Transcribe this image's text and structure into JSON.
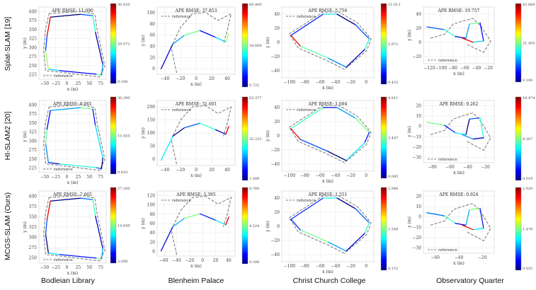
{
  "row_labels": [
    "Splat-SLAM [19]",
    "HI-SLAM2 [20]",
    "MCGS-SLAM (Ours)"
  ],
  "column_labels": [
    "Bodleian Library",
    "Blenheim Palace",
    "Christ Church College",
    "Observatory Quarter"
  ],
  "legend_label": "reference",
  "colors": {
    "reference": "#808080",
    "colormap": [
      "#00007f",
      "#0000ff",
      "#00ffff",
      "#ffff00",
      "#ff0000",
      "#7f0000"
    ]
  },
  "chart_data": [
    {
      "type": "line",
      "title": "APE RMSE: 11.090",
      "row": "Splat-SLAM [19]",
      "column": "Bodleian Library",
      "xlabel": "x (m)",
      "ylabel": "y (m)",
      "xticks": [
        "−50",
        "−25",
        "0",
        "25",
        "50",
        "75"
      ],
      "yticks": [
        "400",
        "375",
        "350",
        "325",
        "300",
        "275",
        "250",
        "225"
      ],
      "colorbar": [
        "30.020",
        "20.072",
        "0.100"
      ]
    },
    {
      "type": "line",
      "title": "APE RMSE: 37.853",
      "row": "Splat-SLAM [19]",
      "column": "Blenheim Palace",
      "xlabel": "x (m)",
      "ylabel": "y (m)",
      "xticks": [
        "−40",
        "−20",
        "0",
        "20",
        "40"
      ],
      "yticks": [
        "100",
        "80",
        "60",
        "40",
        "20",
        "0"
      ],
      "colorbar": [
        "69.490",
        "34.609",
        "0.722"
      ]
    },
    {
      "type": "line",
      "title": "APE RMSE: 5.756",
      "row": "Splat-SLAM [19]",
      "column": "Christ Church College",
      "xlabel": "x (m)",
      "ylabel": "y (m)",
      "xticks": [
        "−100",
        "−80",
        "−60",
        "−40",
        "−20",
        "0"
      ],
      "yticks": [
        "40",
        "20",
        "0",
        "−20",
        "−40"
      ],
      "colorbar": [
        "11.013",
        "5.972",
        "0.432"
      ]
    },
    {
      "type": "line",
      "title": "APE RMSE: 19.757",
      "row": "Splat-SLAM [19]",
      "column": "Observatory Quarter",
      "xlabel": "x (m)",
      "ylabel": "y (m)",
      "xticks": [
        "−120",
        "−100",
        "−80",
        "−60",
        "−40",
        "−20"
      ],
      "yticks": [
        "40",
        "20",
        "0",
        "−20"
      ],
      "colorbar": [
        "42.889",
        "21.495",
        "0.100"
      ]
    },
    {
      "type": "line",
      "title": "APE RMSE: 9.061",
      "row": "HI-SLAM2 [20]",
      "column": "Bodleian Library",
      "xlabel": "x (m)",
      "ylabel": "y (m)",
      "xticks": [
        "−50",
        "−25",
        "0",
        "25",
        "50",
        "75"
      ],
      "yticks": [
        "400",
        "375",
        "350",
        "325",
        "300",
        "275",
        "250",
        "225"
      ],
      "colorbar": [
        "30.390",
        "15.454",
        "0.810"
      ]
    },
    {
      "type": "line",
      "title": "APE RMSE: 31.601",
      "row": "HI-SLAM2 [20]",
      "column": "Blenheim Palace",
      "xlabel": "x (m)",
      "ylabel": "y (m)",
      "xticks": [
        "−40",
        "−20",
        "0",
        "20",
        "40"
      ],
      "yticks": [
        "200",
        "150",
        "100",
        "50",
        "0"
      ],
      "colorbar": [
        "63.377",
        "32.233",
        "1.089"
      ]
    },
    {
      "type": "line",
      "title": "APE RMSE: 1.694",
      "row": "HI-SLAM2 [20]",
      "column": "Christ Church College",
      "xlabel": "x (m)",
      "ylabel": "y (m)",
      "xticks": [
        "−100",
        "−80",
        "−60",
        "−40",
        "−20",
        "0"
      ],
      "yticks": [
        "40",
        "20",
        "0",
        "−20",
        "−40"
      ],
      "colorbar": [
        "4.811",
        "2.447",
        "0.085"
      ]
    },
    {
      "type": "line",
      "title": "APE RMSE: 9.262",
      "row": "HI-SLAM2 [20]",
      "column": "Observatory Quarter",
      "xlabel": "x (m)",
      "ylabel": "y (m)",
      "xticks": [
        "−80",
        "−60",
        "−40",
        "−20"
      ],
      "yticks": [
        "20",
        "10",
        "0",
        "−10",
        "−20",
        "−30"
      ],
      "colorbar": [
        "18.474",
        "9.267",
        "0.019"
      ]
    },
    {
      "type": "line",
      "title": "APE RMSE: 7.665",
      "row": "MCGS-SLAM (Ours)",
      "column": "Bodleian Library",
      "xlabel": "x (m)",
      "ylabel": "y (m)",
      "xticks": [
        "−50",
        "−25",
        "0",
        "25",
        "50",
        "75"
      ],
      "yticks": [
        "400",
        "375",
        "350",
        "325",
        "300",
        "275",
        "250"
      ],
      "colorbar": [
        "27.200",
        "14.649",
        "2.098"
      ]
    },
    {
      "type": "line",
      "title": "APE RMSE: 3.395",
      "row": "MCGS-SLAM (Ours)",
      "column": "Blenheim Palace",
      "xlabel": "x (m)",
      "ylabel": "y (m)",
      "xticks": [
        "−60",
        "−40",
        "−20",
        "0",
        "20",
        "40"
      ],
      "yticks": [
        "120",
        "100",
        "80",
        "60",
        "40",
        "20",
        "0"
      ],
      "colorbar": [
        "8.760",
        "4.524",
        "0.288"
      ]
    },
    {
      "type": "line",
      "title": "APE RMSE: 1.551",
      "row": "MCGS-SLAM (Ours)",
      "column": "Christ Church College",
      "xlabel": "x (m)",
      "ylabel": "y (m)",
      "xticks": [
        "−100",
        "−80",
        "−60",
        "−40",
        "−20",
        "0"
      ],
      "yticks": [
        "40",
        "20",
        "0",
        "−20",
        "−40"
      ],
      "colorbar": [
        "2.946",
        "1.549",
        "0.152"
      ]
    },
    {
      "type": "line",
      "title": "APE RMSE: 0.924",
      "row": "MCGS-SLAM (Ours)",
      "column": "Observatory Quarter",
      "xlabel": "x (m)",
      "ylabel": "y (m)",
      "xticks": [
        "−60",
        "−40",
        "−20"
      ],
      "yticks": [
        "20",
        "10",
        "0",
        "−10",
        "−20",
        "−30"
      ],
      "colorbar": [
        "2.920",
        "1.476",
        "0.032"
      ]
    }
  ]
}
